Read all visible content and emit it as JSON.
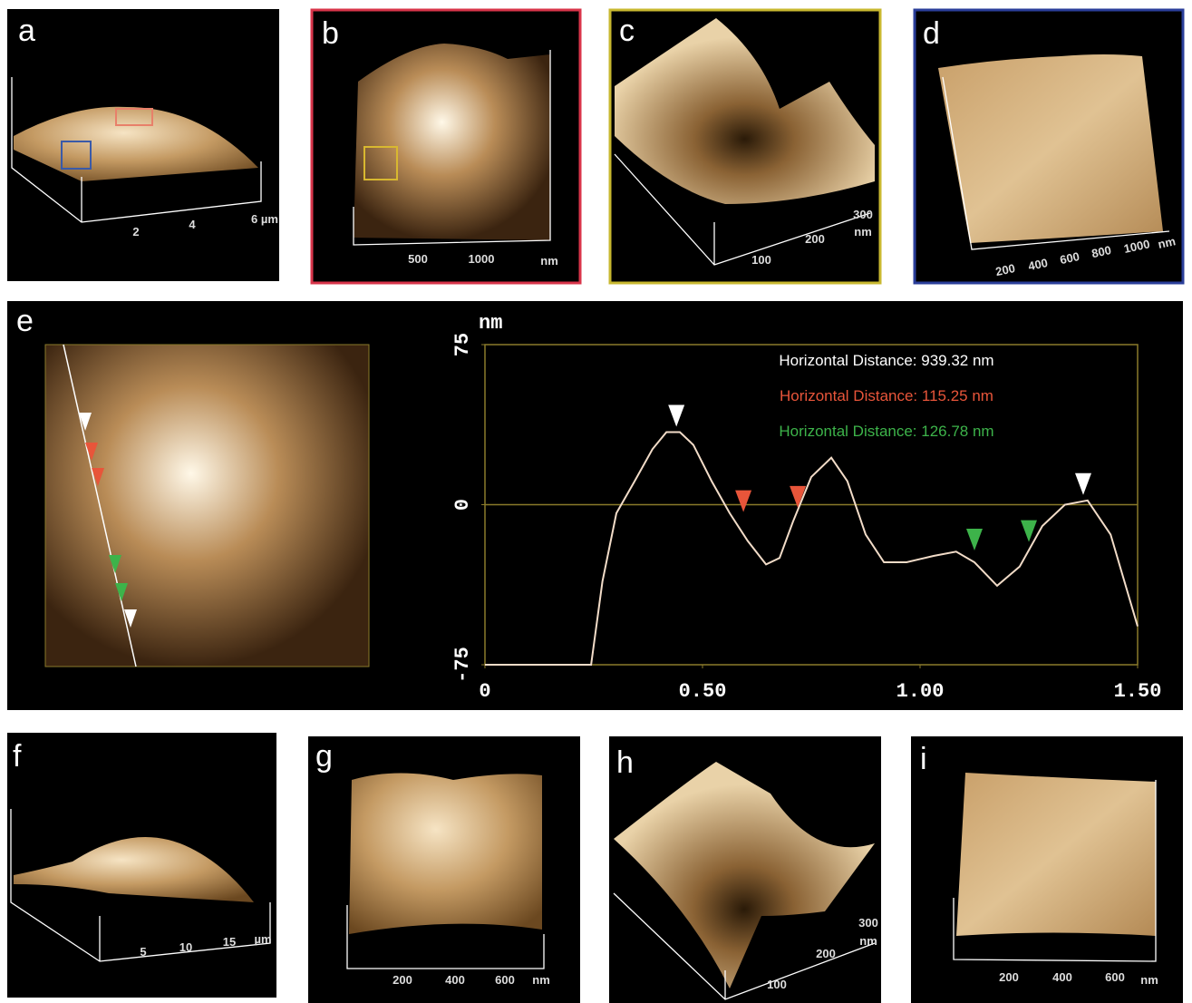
{
  "panels": [
    {
      "label": "a",
      "axis_labels": [
        "2",
        "4",
        "6 µm"
      ]
    },
    {
      "label": "b",
      "axis_labels": [
        "500",
        "1000",
        "nm"
      ]
    },
    {
      "label": "c",
      "axis_labels": [
        "100",
        "200",
        "300",
        "nm"
      ]
    },
    {
      "label": "d",
      "axis_labels": [
        "200",
        "400",
        "600",
        "800",
        "1000",
        "nm"
      ]
    },
    {
      "label": "e"
    },
    {
      "label": "f",
      "axis_labels": [
        "5",
        "10",
        "15",
        "µm"
      ]
    },
    {
      "label": "g",
      "axis_labels": [
        "200",
        "400",
        "600",
        "nm"
      ]
    },
    {
      "label": "h",
      "axis_labels": [
        "100",
        "200",
        "300",
        "nm"
      ]
    },
    {
      "label": "i",
      "axis_labels": [
        "200",
        "400",
        "600",
        "nm"
      ]
    }
  ],
  "chart_data": {
    "type": "line",
    "y_unit": "nm",
    "xlim": [
      0,
      1.5
    ],
    "ylim": [
      -75,
      75
    ],
    "xticks": [
      0,
      {
        "value": 0.5,
        "label": "0.50"
      },
      {
        "value": 1,
        "label": "1.00"
      },
      {
        "value": 1.5,
        "label": "1.50"
      }
    ],
    "yticks": [
      -75,
      0,
      75
    ],
    "reference_line": 0,
    "annotations": [
      {
        "text": "Horizontal Distance: 939.32 nm",
        "color": "#ffffff"
      },
      {
        "text": "Horizontal Distance: 115.25 nm",
        "color": "#e8553a"
      },
      {
        "text": "Horizontal Distance: 126.78 nm",
        "color": "#3db34a"
      }
    ],
    "color": "#f2dcc8",
    "x": [
      0,
      0.244,
      0.27,
      0.302,
      0.344,
      0.385,
      0.417,
      0.448,
      0.479,
      0.521,
      0.5625,
      0.604,
      0.646,
      0.677,
      0.708,
      0.75,
      0.796,
      0.833,
      0.875,
      0.917,
      0.969,
      1.031,
      1.083,
      1.125,
      1.177,
      1.229,
      1.281,
      1.333,
      1.385,
      1.438,
      1.5
    ],
    "values": [
      -75,
      -75,
      -36,
      -4,
      11,
      26,
      34,
      34,
      28,
      11,
      -4,
      -17,
      -28,
      -25,
      -8,
      13,
      22,
      11,
      -14,
      -27,
      -27,
      -24,
      -22,
      -27,
      -38,
      -29,
      -10,
      0,
      2,
      -14,
      -57
    ],
    "markers": [
      {
        "x": 0.44,
        "y": 34,
        "color": "#ffffff"
      },
      {
        "x": 1.375,
        "y": 2,
        "color": "#ffffff"
      },
      {
        "x": 0.594,
        "y": -6,
        "color": "#e8553a"
      },
      {
        "x": 0.719,
        "y": -4,
        "color": "#e8553a"
      },
      {
        "x": 1.125,
        "y": -24,
        "color": "#3db34a"
      },
      {
        "x": 1.25,
        "y": -20,
        "color": "#3db34a"
      }
    ]
  }
}
